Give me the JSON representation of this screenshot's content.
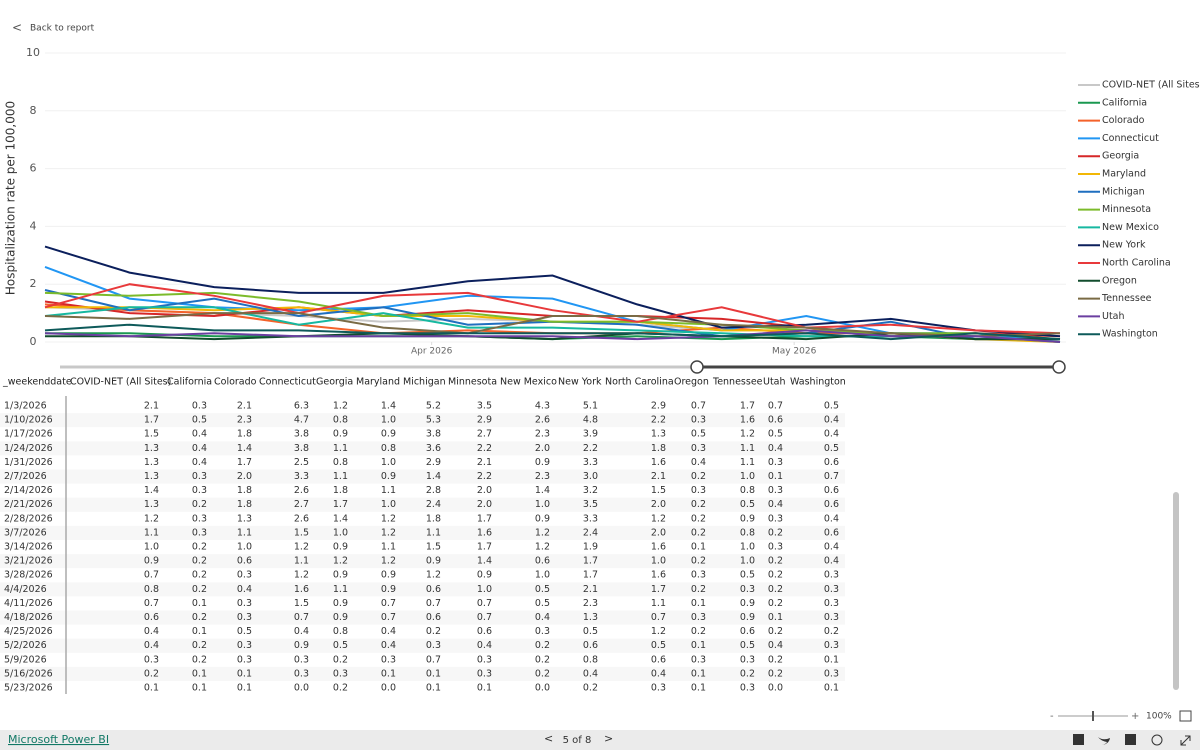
{
  "ui": {
    "back": "Back to report",
    "brand": "Microsoft Power BI",
    "page": "5 of 8",
    "zoom": "100%"
  },
  "chart_data": {
    "type": "line",
    "y_label": "Hospitalization rate per 100,000",
    "x": [
      "2/28/2026",
      "3/7/2026",
      "3/14/2026",
      "3/21/2026",
      "3/28/2026",
      "4/4/2026",
      "4/11/2026",
      "4/18/2026",
      "4/25/2026",
      "5/2/2026",
      "5/9/2026",
      "5/16/2026",
      "5/23/2026"
    ],
    "xlim": [
      "2/28/2026",
      "5/23/2026"
    ],
    "xticks": [
      {
        "value": "4/1/2026",
        "label": "Apr 2026"
      },
      {
        "value": "5/1/2026",
        "label": "May 2026"
      }
    ],
    "ylim": [
      0,
      10
    ],
    "yticks": [
      0,
      2,
      4,
      6,
      8,
      10
    ],
    "grid": true,
    "legend": "right",
    "series": [
      {
        "name": "COVID-NET (All Sites)",
        "color": "#c8c8c8",
        "values": [
          1.2,
          1.1,
          1.0,
          0.9,
          0.7,
          0.8,
          0.7,
          0.6,
          0.4,
          0.4,
          0.3,
          0.2,
          0.1
        ]
      },
      {
        "name": "California",
        "color": "#1a9850",
        "values": [
          0.3,
          0.3,
          0.2,
          0.2,
          0.2,
          0.2,
          0.1,
          0.2,
          0.1,
          0.2,
          0.2,
          0.1,
          0.1
        ]
      },
      {
        "name": "Colorado",
        "color": "#f4622a",
        "values": [
          1.3,
          1.1,
          1.0,
          0.6,
          0.3,
          0.4,
          0.3,
          0.3,
          0.5,
          0.3,
          0.3,
          0.1,
          0.1
        ]
      },
      {
        "name": "Connecticut",
        "color": "#2196f3",
        "values": [
          2.6,
          1.5,
          1.2,
          1.1,
          1.2,
          1.6,
          1.5,
          0.7,
          0.4,
          0.9,
          0.3,
          0.3,
          0.0
        ]
      },
      {
        "name": "Georgia",
        "color": "#d62728",
        "values": [
          1.4,
          1.0,
          0.9,
          1.2,
          0.9,
          1.1,
          0.9,
          0.9,
          0.8,
          0.5,
          0.2,
          0.3,
          0.2
        ]
      },
      {
        "name": "Maryland",
        "color": "#f2b705",
        "values": [
          1.2,
          1.2,
          1.1,
          1.2,
          0.9,
          0.9,
          0.7,
          0.7,
          0.4,
          0.4,
          0.3,
          0.1,
          0.0
        ]
      },
      {
        "name": "Michigan",
        "color": "#1f6fbf",
        "values": [
          1.8,
          1.1,
          1.5,
          0.9,
          1.2,
          0.6,
          0.7,
          0.6,
          0.2,
          0.3,
          0.7,
          0.1,
          0.1
        ]
      },
      {
        "name": "Minnesota",
        "color": "#7cbb2b",
        "values": [
          1.7,
          1.6,
          1.7,
          1.4,
          0.9,
          1.0,
          0.7,
          0.7,
          0.6,
          0.4,
          0.3,
          0.3,
          0.1
        ]
      },
      {
        "name": "New Mexico",
        "color": "#16b8a0",
        "values": [
          0.9,
          1.2,
          1.2,
          0.6,
          1.0,
          0.5,
          0.5,
          0.4,
          0.3,
          0.2,
          0.2,
          0.2,
          0.0
        ]
      },
      {
        "name": "New York",
        "color": "#0b1f5c",
        "values": [
          3.3,
          2.4,
          1.9,
          1.7,
          1.7,
          2.1,
          2.3,
          1.3,
          0.5,
          0.6,
          0.8,
          0.4,
          0.2
        ]
      },
      {
        "name": "North Carolina",
        "color": "#e8393b",
        "values": [
          1.2,
          2.0,
          1.6,
          1.0,
          1.6,
          1.7,
          1.1,
          0.7,
          1.2,
          0.5,
          0.6,
          0.4,
          0.3
        ]
      },
      {
        "name": "Oregon",
        "color": "#124d2e",
        "values": [
          0.2,
          0.2,
          0.1,
          0.2,
          0.3,
          0.2,
          0.1,
          0.3,
          0.2,
          0.1,
          0.3,
          0.1,
          0.1
        ]
      },
      {
        "name": "Tennessee",
        "color": "#7a6b45",
        "values": [
          0.9,
          0.8,
          1.0,
          1.0,
          0.5,
          0.3,
          0.9,
          0.9,
          0.6,
          0.5,
          0.3,
          0.2,
          0.3
        ]
      },
      {
        "name": "Utah",
        "color": "#6b3fa0",
        "values": [
          0.3,
          0.2,
          0.3,
          0.2,
          0.2,
          0.2,
          0.2,
          0.1,
          0.2,
          0.4,
          0.2,
          0.2,
          0.0
        ]
      },
      {
        "name": "Washington",
        "color": "#0e5a5a",
        "values": [
          0.4,
          0.6,
          0.4,
          0.4,
          0.3,
          0.3,
          0.3,
          0.3,
          0.2,
          0.3,
          0.1,
          0.3,
          0.1
        ]
      }
    ]
  },
  "table": {
    "columns": [
      "_weekenddate",
      "COVID-NET (All Sites)",
      "California",
      "Colorado",
      "Connecticut",
      "Georgia",
      "Maryland",
      "Michigan",
      "Minnesota",
      "New Mexico",
      "New York",
      "North Carolina",
      "Oregon",
      "Tennessee",
      "Utah",
      "Washington"
    ],
    "rows": [
      [
        "1/3/2026",
        "2.1",
        "0.3",
        "2.1",
        "6.3",
        "1.2",
        "1.4",
        "5.2",
        "3.5",
        "4.3",
        "5.1",
        "2.9",
        "0.7",
        "1.7",
        "0.7",
        "0.5"
      ],
      [
        "1/10/2026",
        "1.7",
        "0.5",
        "2.3",
        "4.7",
        "0.8",
        "1.0",
        "5.3",
        "2.9",
        "2.6",
        "4.8",
        "2.2",
        "0.3",
        "1.6",
        "0.6",
        "0.4"
      ],
      [
        "1/17/2026",
        "1.5",
        "0.4",
        "1.8",
        "3.8",
        "0.9",
        "0.9",
        "3.8",
        "2.7",
        "2.3",
        "3.9",
        "1.3",
        "0.5",
        "1.2",
        "0.5",
        "0.4"
      ],
      [
        "1/24/2026",
        "1.3",
        "0.4",
        "1.4",
        "3.8",
        "1.1",
        "0.8",
        "3.6",
        "2.2",
        "2.0",
        "2.2",
        "1.8",
        "0.3",
        "1.1",
        "0.4",
        "0.5"
      ],
      [
        "1/31/2026",
        "1.3",
        "0.4",
        "1.7",
        "2.5",
        "0.8",
        "1.0",
        "2.9",
        "2.1",
        "0.9",
        "3.3",
        "1.6",
        "0.4",
        "1.1",
        "0.3",
        "0.6"
      ],
      [
        "2/7/2026",
        "1.3",
        "0.3",
        "2.0",
        "3.3",
        "1.1",
        "0.9",
        "1.4",
        "2.2",
        "2.3",
        "3.0",
        "2.1",
        "0.2",
        "1.0",
        "0.1",
        "0.7"
      ],
      [
        "2/14/2026",
        "1.4",
        "0.3",
        "1.8",
        "2.6",
        "1.8",
        "1.1",
        "2.8",
        "2.0",
        "1.4",
        "3.2",
        "1.5",
        "0.3",
        "0.8",
        "0.3",
        "0.6"
      ],
      [
        "2/21/2026",
        "1.3",
        "0.2",
        "1.8",
        "2.7",
        "1.7",
        "1.0",
        "2.4",
        "2.0",
        "1.0",
        "3.5",
        "2.0",
        "0.2",
        "0.5",
        "0.4",
        "0.6"
      ],
      [
        "2/28/2026",
        "1.2",
        "0.3",
        "1.3",
        "2.6",
        "1.4",
        "1.2",
        "1.8",
        "1.7",
        "0.9",
        "3.3",
        "1.2",
        "0.2",
        "0.9",
        "0.3",
        "0.4"
      ],
      [
        "3/7/2026",
        "1.1",
        "0.3",
        "1.1",
        "1.5",
        "1.0",
        "1.2",
        "1.1",
        "1.6",
        "1.2",
        "2.4",
        "2.0",
        "0.2",
        "0.8",
        "0.2",
        "0.6"
      ],
      [
        "3/14/2026",
        "1.0",
        "0.2",
        "1.0",
        "1.2",
        "0.9",
        "1.1",
        "1.5",
        "1.7",
        "1.2",
        "1.9",
        "1.6",
        "0.1",
        "1.0",
        "0.3",
        "0.4"
      ],
      [
        "3/21/2026",
        "0.9",
        "0.2",
        "0.6",
        "1.1",
        "1.2",
        "1.2",
        "0.9",
        "1.4",
        "0.6",
        "1.7",
        "1.0",
        "0.2",
        "1.0",
        "0.2",
        "0.4"
      ],
      [
        "3/28/2026",
        "0.7",
        "0.2",
        "0.3",
        "1.2",
        "0.9",
        "0.9",
        "1.2",
        "0.9",
        "1.0",
        "1.7",
        "1.6",
        "0.3",
        "0.5",
        "0.2",
        "0.3"
      ],
      [
        "4/4/2026",
        "0.8",
        "0.2",
        "0.4",
        "1.6",
        "1.1",
        "0.9",
        "0.6",
        "1.0",
        "0.5",
        "2.1",
        "1.7",
        "0.2",
        "0.3",
        "0.2",
        "0.3"
      ],
      [
        "4/11/2026",
        "0.7",
        "0.1",
        "0.3",
        "1.5",
        "0.9",
        "0.7",
        "0.7",
        "0.7",
        "0.5",
        "2.3",
        "1.1",
        "0.1",
        "0.9",
        "0.2",
        "0.3"
      ],
      [
        "4/18/2026",
        "0.6",
        "0.2",
        "0.3",
        "0.7",
        "0.9",
        "0.7",
        "0.6",
        "0.7",
        "0.4",
        "1.3",
        "0.7",
        "0.3",
        "0.9",
        "0.1",
        "0.3"
      ],
      [
        "4/25/2026",
        "0.4",
        "0.1",
        "0.5",
        "0.4",
        "0.8",
        "0.4",
        "0.2",
        "0.6",
        "0.3",
        "0.5",
        "1.2",
        "0.2",
        "0.6",
        "0.2",
        "0.2"
      ],
      [
        "5/2/2026",
        "0.4",
        "0.2",
        "0.3",
        "0.9",
        "0.5",
        "0.4",
        "0.3",
        "0.4",
        "0.2",
        "0.6",
        "0.5",
        "0.1",
        "0.5",
        "0.4",
        "0.3"
      ],
      [
        "5/9/2026",
        "0.3",
        "0.2",
        "0.3",
        "0.3",
        "0.2",
        "0.3",
        "0.7",
        "0.3",
        "0.2",
        "0.8",
        "0.6",
        "0.3",
        "0.3",
        "0.2",
        "0.1"
      ],
      [
        "5/16/2026",
        "0.2",
        "0.1",
        "0.1",
        "0.3",
        "0.3",
        "0.1",
        "0.1",
        "0.3",
        "0.2",
        "0.4",
        "0.4",
        "0.1",
        "0.2",
        "0.2",
        "0.3"
      ],
      [
        "5/23/2026",
        "0.1",
        "0.1",
        "0.1",
        "0.0",
        "0.2",
        "0.0",
        "0.1",
        "0.1",
        "0.0",
        "0.2",
        "0.3",
        "0.1",
        "0.3",
        "0.0",
        "0.1"
      ]
    ]
  }
}
